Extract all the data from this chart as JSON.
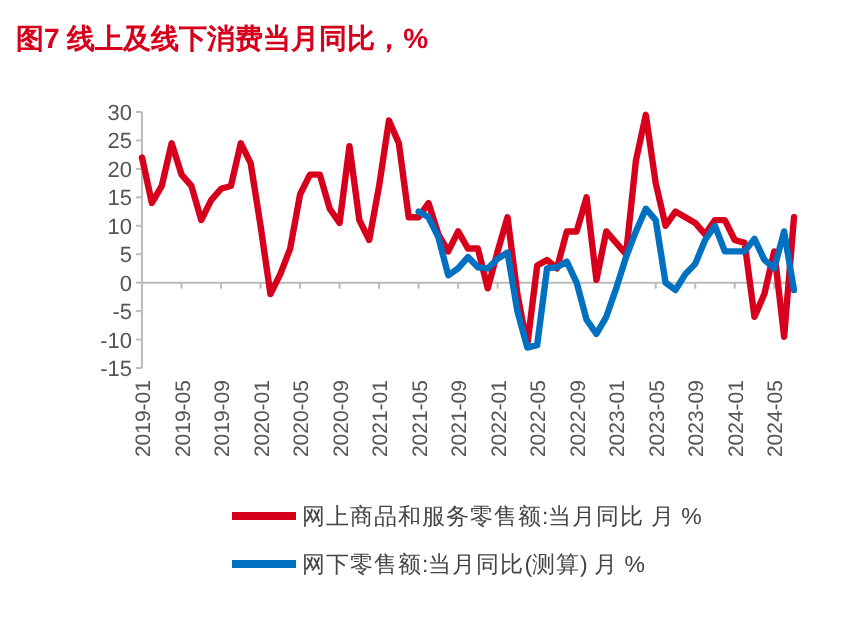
{
  "chart_data": {
    "type": "line",
    "title": "图7  线上及线下消费当月同比，%",
    "x": [
      "2019-01",
      "2019-02",
      "2019-03",
      "2019-04",
      "2019-05",
      "2019-06",
      "2019-07",
      "2019-08",
      "2019-09",
      "2019-10",
      "2019-11",
      "2019-12",
      "2020-01",
      "2020-02",
      "2020-03",
      "2020-04",
      "2020-05",
      "2020-06",
      "2020-07",
      "2020-08",
      "2020-09",
      "2020-10",
      "2020-11",
      "2020-12",
      "2021-01",
      "2021-02",
      "2021-03",
      "2021-04",
      "2021-05",
      "2021-06",
      "2021-07",
      "2021-08",
      "2021-09",
      "2021-10",
      "2021-11",
      "2021-12",
      "2022-01",
      "2022-02",
      "2022-03",
      "2022-04",
      "2022-05",
      "2022-06",
      "2022-07",
      "2022-08",
      "2022-09",
      "2022-10",
      "2022-11",
      "2022-12",
      "2023-01",
      "2023-02",
      "2023-03",
      "2023-04",
      "2023-05",
      "2023-06",
      "2023-07",
      "2023-08",
      "2023-09",
      "2023-10",
      "2023-11",
      "2023-12",
      "2024-01",
      "2024-02",
      "2024-03",
      "2024-04",
      "2024-05",
      "2024-06",
      "2024-07"
    ],
    "series": [
      {
        "name": "网上商品和服务零售额:当月同比 月 %",
        "color": "#d7001c",
        "values": [
          22,
          14,
          17,
          24.5,
          19,
          17,
          11,
          14.5,
          16.5,
          17,
          24.5,
          21,
          10,
          -2,
          1.5,
          6,
          15.5,
          19,
          19,
          13,
          10.5,
          24,
          11,
          7.5,
          17,
          28.5,
          24.5,
          11.5,
          11.5,
          14,
          8.5,
          5.5,
          9,
          6,
          6,
          -1,
          5.5,
          11.5,
          -2,
          -11,
          3,
          4,
          2.5,
          9,
          9,
          15,
          0.5,
          9,
          7,
          5,
          21.5,
          29.5,
          17.5,
          10,
          12.5,
          11.5,
          10.5,
          8.5,
          11,
          11,
          7.5,
          7,
          -6,
          -2,
          5.5,
          -9.5,
          11.5
        ]
      },
      {
        "name": "网下零售额:当月同比(测算) 月 %",
        "color": "#0070c0",
        "values": [
          null,
          null,
          null,
          null,
          null,
          null,
          null,
          null,
          null,
          null,
          null,
          null,
          null,
          null,
          null,
          null,
          null,
          null,
          null,
          null,
          null,
          null,
          null,
          null,
          null,
          null,
          null,
          null,
          12.5,
          11.5,
          8,
          1.3,
          2.5,
          4.5,
          2.7,
          2.5,
          4.2,
          5.3,
          -5,
          -11.4,
          -11,
          2.5,
          2.7,
          3.7,
          0,
          -6.5,
          -9,
          -6,
          -1,
          4.5,
          9,
          13,
          11,
          0,
          -1.3,
          1.5,
          3.3,
          7.5,
          10,
          5.5,
          5.5,
          5.5,
          7.7,
          4,
          2.5,
          9,
          -1.3
        ]
      }
    ],
    "xlim": [
      "2019-01",
      "2024-07"
    ],
    "xticks": [
      "2019-01",
      "2019-05",
      "2019-09",
      "2020-01",
      "2020-05",
      "2020-09",
      "2021-01",
      "2021-05",
      "2021-09",
      "2022-01",
      "2022-05",
      "2022-09",
      "2023-01",
      "2023-05",
      "2023-09",
      "2024-01",
      "2024-05"
    ],
    "ylim": [
      -15,
      30
    ],
    "yticks": [
      -15,
      -10,
      -5,
      0,
      5,
      10,
      15,
      20,
      25,
      30
    ],
    "legend": "bottom",
    "line_style": "solid",
    "marker": "none"
  }
}
